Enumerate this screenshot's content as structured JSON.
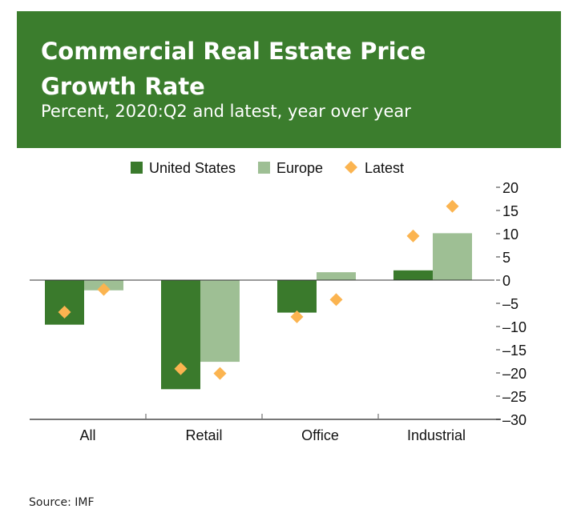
{
  "header": {
    "title": "Commercial Real Estate Price Growth Rate",
    "subtitle": "Percent, 2020:Q2 and latest, year over year"
  },
  "source": "Source: IMF",
  "colors": {
    "us": "#3a7a2c",
    "europe": "#9ebf94",
    "latest": "#fbb450",
    "header": "#3b7d2d"
  },
  "chart_data": {
    "type": "bar",
    "title": "Commercial Real Estate Price Growth Rate",
    "categories": [
      "All",
      "Retail",
      "Office",
      "Industrial"
    ],
    "series": [
      {
        "name": "United States",
        "values": [
          -9.6,
          -23.5,
          -7.0,
          2.1
        ]
      },
      {
        "name": "Europe",
        "values": [
          -2.2,
          -17.6,
          1.7,
          10.1
        ]
      }
    ],
    "latest": {
      "name": "Latest",
      "us": [
        -6.9,
        -19.1,
        -7.9,
        9.5
      ],
      "europe": [
        -2.0,
        -20.1,
        -4.2,
        15.9
      ]
    },
    "ylim": [
      -30,
      20
    ],
    "yticks": [
      20,
      15,
      10,
      5,
      0,
      -5,
      -10,
      -15,
      -20,
      -25,
      -30
    ],
    "ytick_labels": [
      "20",
      "15",
      "10",
      "5",
      "0",
      "–5",
      "–10",
      "–15",
      "–20",
      "–25",
      "–30"
    ],
    "legend": [
      "United States",
      "Europe",
      "Latest"
    ],
    "legend_position": "top-center",
    "grid": false
  }
}
